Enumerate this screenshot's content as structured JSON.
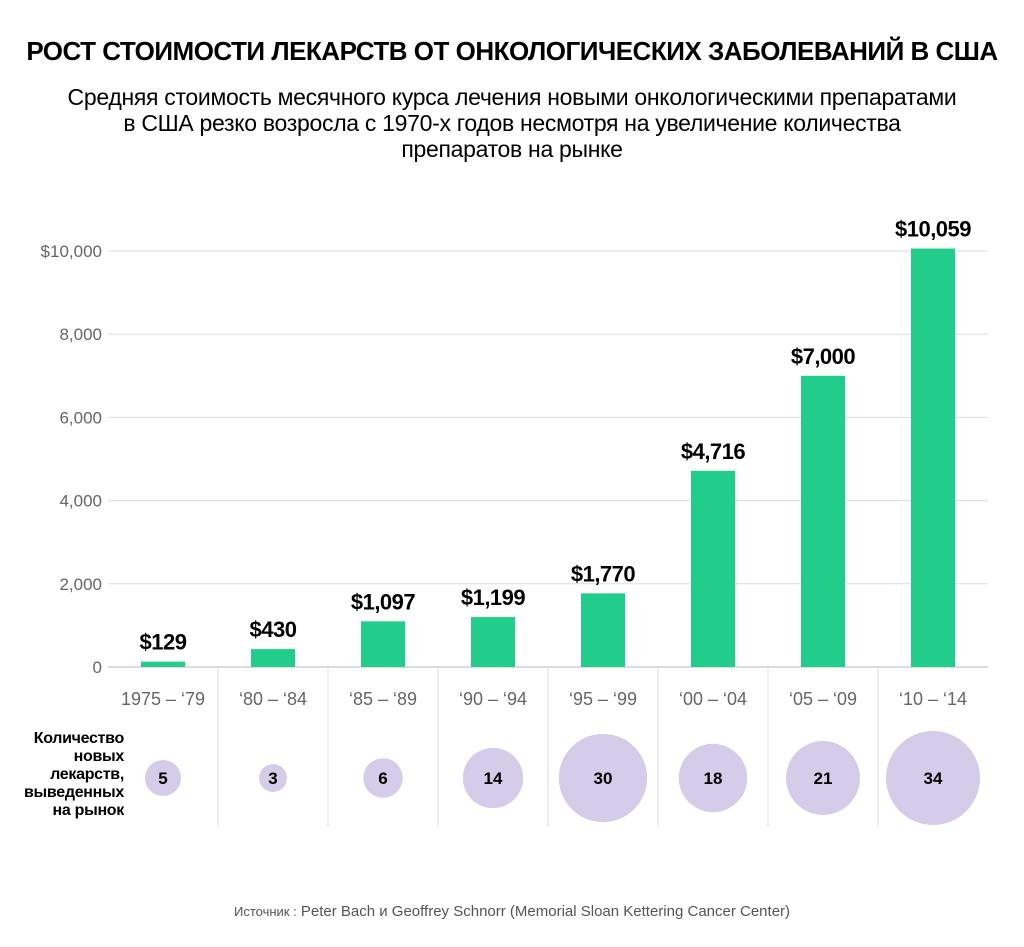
{
  "title": "РОСТ СТОИМОСТИ ЛЕКАРСТВ ОТ ОНКОЛОГИЧЕСКИХ ЗАБОЛЕВАНИЙ В США",
  "subtitle": "Средняя стоимость месячного курса лечения новыми онкологическими препаратами в США резко возросла с 1970-х годов несмотря на увеличение количества препаратов на рынке",
  "source_label": "Источник :",
  "source_text": "Peter Bach и Geoffrey Schnorr (Memorial Sloan Kettering Cancer Center)",
  "colors": {
    "bar": "#22cc8a",
    "bubble": "#d4cce8",
    "grid": "#dddddd",
    "axis_text": "#666666"
  },
  "chart_data": [
    {
      "type": "bar",
      "categories": [
        "1975 – ‘79",
        "‘80 – ‘84",
        "‘85 – ‘89",
        "‘90 – ‘94",
        "‘95 – ‘99",
        "‘00 – ‘04",
        "‘05 – ‘09",
        "‘10 – ‘14"
      ],
      "values": [
        129,
        430,
        1097,
        1199,
        1770,
        4716,
        7000,
        10059
      ],
      "value_labels": [
        "$129",
        "$430",
        "$1,097",
        "$1,199",
        "$1,770",
        "$4,716",
        "$7,000",
        "$10,059"
      ],
      "ylim": [
        0,
        10000
      ],
      "yticks": [
        0,
        2000,
        4000,
        6000,
        8000,
        10000
      ],
      "ytick_labels": [
        "0",
        "2,000",
        "4,000",
        "6,000",
        "8,000",
        "$10,000"
      ],
      "grid": true
    },
    {
      "type": "bubble",
      "row_label": [
        "Количество",
        "новых",
        "лекарств,",
        "выведенных",
        "на рынок"
      ],
      "categories": [
        "1975 – ‘79",
        "‘80 – ‘84",
        "‘85 – ‘89",
        "‘90 – ‘94",
        "‘95 – ‘99",
        "‘00 – ‘04",
        "‘05 – ‘09",
        "‘10 – ‘14"
      ],
      "values": [
        5,
        3,
        6,
        14,
        30,
        18,
        21,
        34
      ]
    }
  ]
}
